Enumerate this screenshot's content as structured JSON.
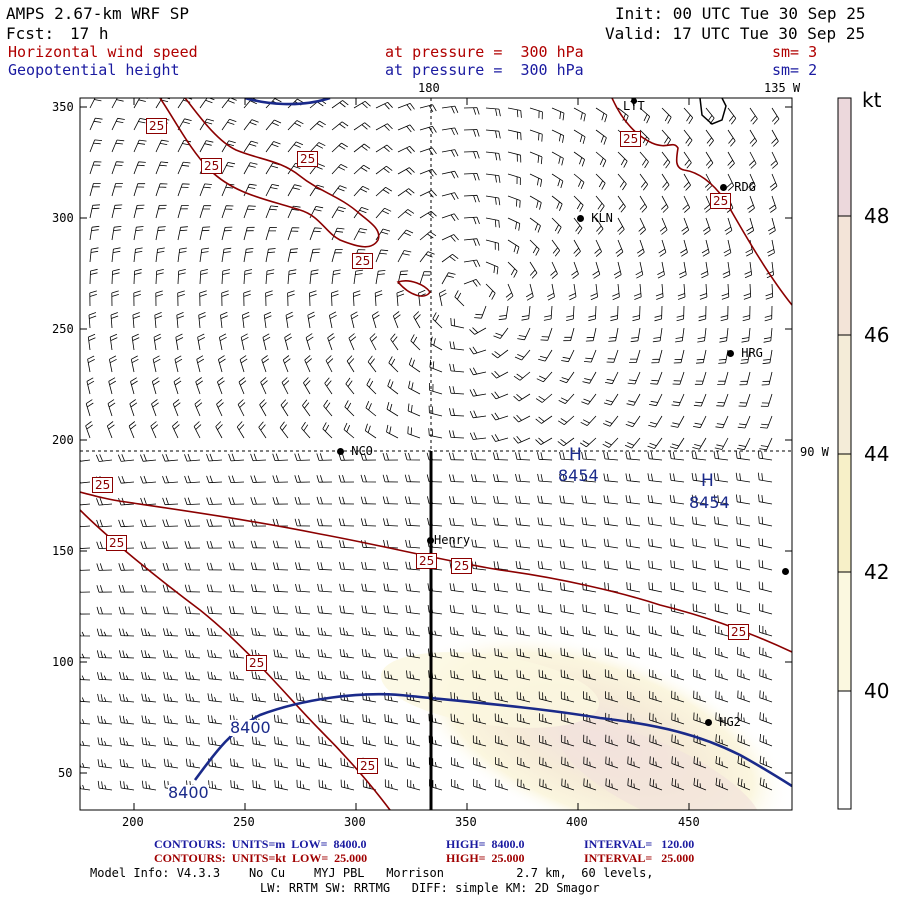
{
  "header": {
    "model": "AMPS 2.67-km WRF SP",
    "fcst_label": "Fcst:",
    "fcst_value": "17 h",
    "init": "Init: 00 UTC Tue 30 Sep 25",
    "valid": "Valid: 17 UTC Tue 30 Sep 25",
    "field1": "Horizontal wind speed",
    "field1_level": "at pressure =  300 hPa",
    "field1_sm": "sm= 3",
    "field2": "Geopotential height",
    "field2_level": "at pressure =  300 hPa",
    "field2_sm": "sm= 2"
  },
  "map": {
    "lon_180_label": "180",
    "lon_135w_label": "135 W",
    "lon_90w_label": "90 W",
    "x_ticks": [
      "200",
      "250",
      "300",
      "350",
      "400",
      "450"
    ],
    "y_ticks": [
      "350",
      "300",
      "250",
      "200",
      "150",
      "100",
      "50"
    ],
    "stations": [
      {
        "id": "LTT",
        "label": "LTT"
      },
      {
        "id": "RDG",
        "label": "RDG"
      },
      {
        "id": "KLN",
        "label": "KLN"
      },
      {
        "id": "HRG",
        "label": "HRG"
      },
      {
        "id": "NCO",
        "label": "NCO"
      },
      {
        "id": "Henry",
        "label": "Henry"
      },
      {
        "id": "HG2",
        "label": "HG2"
      }
    ],
    "highs": [
      {
        "symbol": "H",
        "value": "8454"
      },
      {
        "symbol": "H",
        "value": "8454"
      }
    ],
    "height_contour_labels": [
      "8400",
      "8400"
    ],
    "wind_contour_label": "25"
  },
  "colorbar": {
    "unit": "kt",
    "ticks": [
      "48",
      "46",
      "44",
      "42",
      "40"
    ],
    "colors": {
      "band_48_plus": "#ecd8dc",
      "band_46_48": "#f3e4d8",
      "band_44_46": "#f4ecd8",
      "band_42_44": "#f7f0c8",
      "band_40_42": "#fbf8e0",
      "band_below_40": "#ffffff"
    }
  },
  "footer": {
    "contour1_label": "CONTOURS:  UNITS=m  LOW=  8400.0",
    "contour1_high": "HIGH=  8400.0",
    "contour1_interval": "INTERVAL=   120.00",
    "contour2_label": "CONTOURS:  UNITS=kt  LOW=  25.000",
    "contour2_high": "HIGH=  25.000",
    "contour2_interval": "INTERVAL=   25.000",
    "model_info": "Model Info: V4.3.3    No Cu    MYJ PBL   Morrison          2.7 km,  60 levels,",
    "model_info2": "LW: RRTM SW: RRTMG   DIFF: simple KM: 2D Smagor"
  },
  "colors": {
    "wind_contour": "#8b0000",
    "height_contour": "#1a2a8a",
    "barb": "#000000",
    "cross_section": "#000000"
  }
}
